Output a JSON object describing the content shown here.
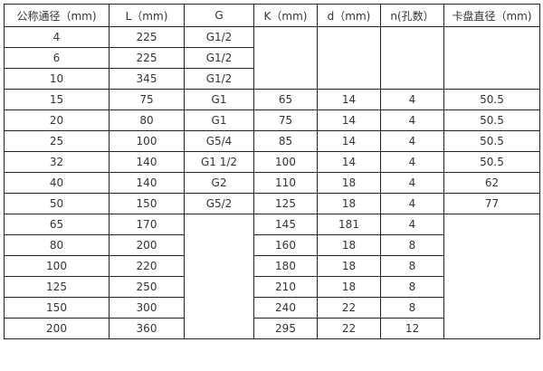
{
  "table": {
    "headers": [
      "公称通径（mm)",
      "L（mm)",
      "G",
      "K（mm)",
      "d（mm)",
      "n(孔数）",
      "卡盘直径（mm)"
    ],
    "rows": [
      [
        "4",
        "225",
        "G1/2",
        "",
        "",
        "",
        ""
      ],
      [
        "6",
        "225",
        "G1/2",
        null,
        null,
        null,
        null
      ],
      [
        "10",
        "345",
        "G1/2",
        null,
        null,
        null,
        null
      ],
      [
        "15",
        "75",
        "G1",
        "65",
        "14",
        "4",
        "50.5"
      ],
      [
        "20",
        "80",
        "G1",
        "75",
        "14",
        "4",
        "50.5"
      ],
      [
        "25",
        "100",
        "G5/4",
        "85",
        "14",
        "4",
        "50.5"
      ],
      [
        "32",
        "140",
        "G1  1/2",
        "100",
        "14",
        "4",
        "50.5"
      ],
      [
        "40",
        "140",
        "G2",
        "110",
        "18",
        "4",
        "62"
      ],
      [
        "50",
        "150",
        "G5/2",
        "125",
        "18",
        "4",
        "77"
      ],
      [
        "65",
        "170",
        "",
        "145",
        "181",
        "4",
        ""
      ],
      [
        "80",
        "200",
        null,
        "160",
        "18",
        "8",
        null
      ],
      [
        "100",
        "220",
        null,
        "180",
        "18",
        "8",
        null
      ],
      [
        "125",
        "250",
        null,
        "210",
        "18",
        "8",
        null
      ],
      [
        "150",
        "300",
        null,
        "240",
        "22",
        "8",
        null
      ],
      [
        "200",
        "360",
        null,
        "295",
        "22",
        "12",
        null
      ]
    ]
  }
}
